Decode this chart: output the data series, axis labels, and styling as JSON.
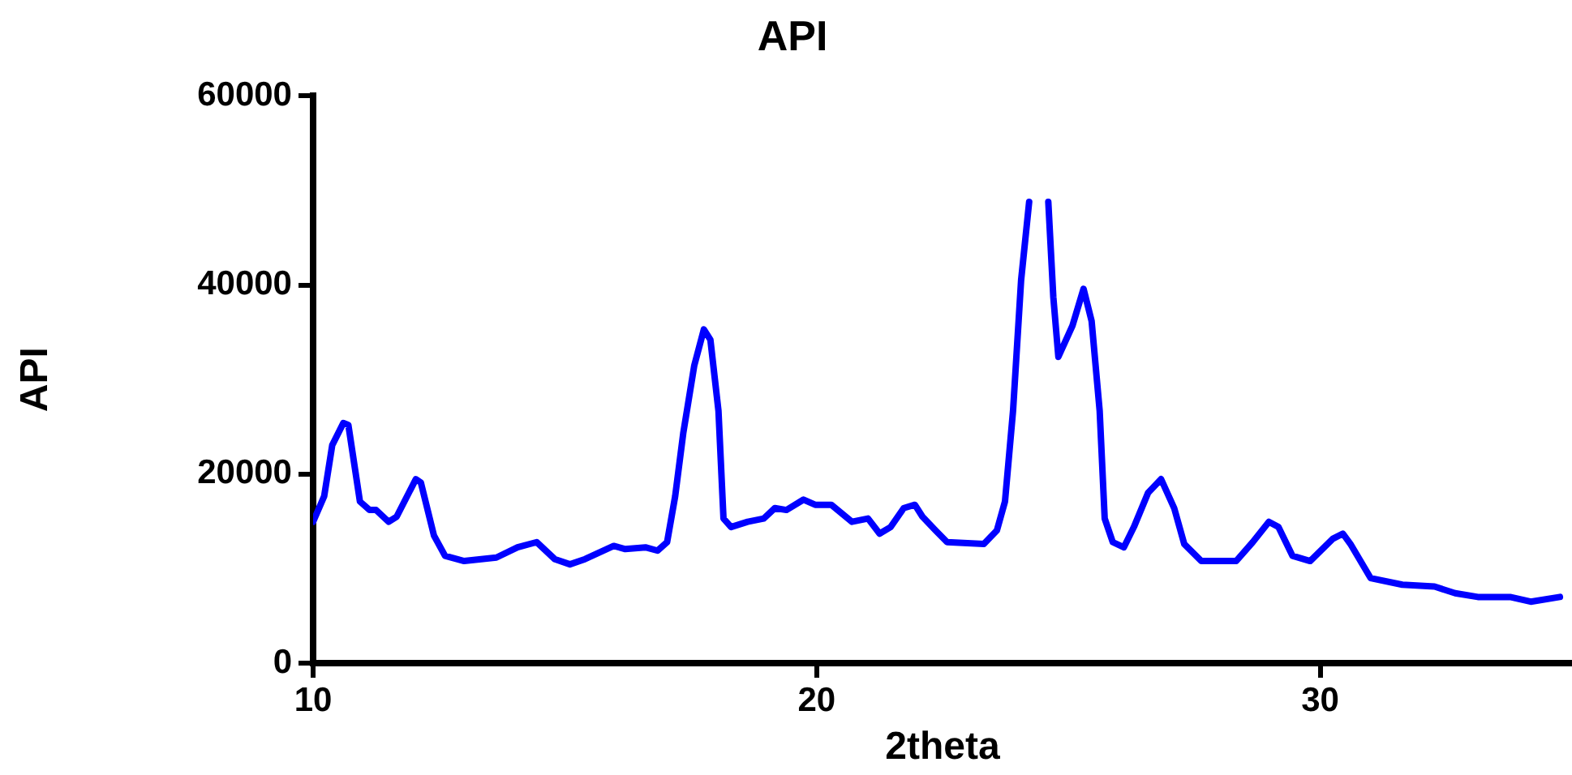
{
  "chart_data": {
    "type": "line",
    "title": "API",
    "xlabel": "2theta",
    "ylabel": "API",
    "xlim": [
      10,
      35
    ],
    "xticks": [
      10,
      20,
      30
    ],
    "ylim": [
      0,
      60000
    ],
    "yticks": [
      0,
      20000,
      40000,
      60000
    ],
    "grid": false,
    "legend": false,
    "marker": "none",
    "line_style": "solid",
    "series": [
      {
        "color": "#0000ff",
        "x": [
          10,
          10.22,
          10.38,
          10.6,
          10.7,
          10.93,
          11.12,
          11.25,
          11.5,
          11.66,
          12.04,
          12.14,
          12.4,
          12.62,
          13.0,
          13.64,
          14.06,
          14.44,
          14.8,
          15.1,
          15.4,
          15.97,
          16.2,
          16.6,
          16.84,
          17.03,
          17.19,
          17.35,
          17.57,
          17.76,
          17.89,
          18.05,
          18.15,
          18.3,
          18.63,
          18.95,
          19.17,
          19.4,
          19.74,
          19.97,
          20.29,
          20.7,
          21.02,
          21.25,
          21.47,
          21.73,
          21.95,
          22.1,
          22.36,
          22.59,
          23.32,
          23.58,
          23.74,
          23.9,
          24.06,
          24.22,
          24.4,
          24.6,
          24.7,
          24.8,
          25.08,
          25.3,
          25.46,
          25.62,
          25.72,
          25.88,
          26.1,
          26.3,
          26.58,
          26.84,
          27.1,
          27.3,
          27.64,
          28.33,
          28.66,
          28.98,
          29.17,
          29.45,
          29.8,
          30.25,
          30.45,
          30.6,
          31.0,
          31.63,
          32.27,
          32.68,
          33.13,
          33.77,
          34.18,
          34.76
        ],
        "values": [
          14950,
          17650,
          23060,
          25400,
          25200,
          17100,
          16200,
          16200,
          14950,
          15500,
          19460,
          19100,
          13500,
          11350,
          10800,
          11170,
          12250,
          12800,
          11000,
          10450,
          11000,
          12400,
          12070,
          12250,
          11900,
          12800,
          17650,
          24300,
          31500,
          35300,
          34200,
          26700,
          15300,
          14400,
          14950,
          15300,
          16400,
          16200,
          17300,
          16750,
          16750,
          14950,
          15300,
          13700,
          14400,
          16400,
          16750,
          15500,
          14050,
          12800,
          12600,
          14050,
          17100,
          26700,
          40500,
          48800,
          null,
          48800,
          38700,
          32400,
          35700,
          39600,
          36200,
          26700,
          15300,
          12800,
          12250,
          14400,
          18000,
          19460,
          16400,
          12600,
          10800,
          10800,
          12800,
          14950,
          14400,
          11350,
          10800,
          13150,
          13700,
          12600,
          9000,
          8300,
          8100,
          7400,
          7000,
          7000,
          6500,
          7000
        ]
      }
    ]
  }
}
